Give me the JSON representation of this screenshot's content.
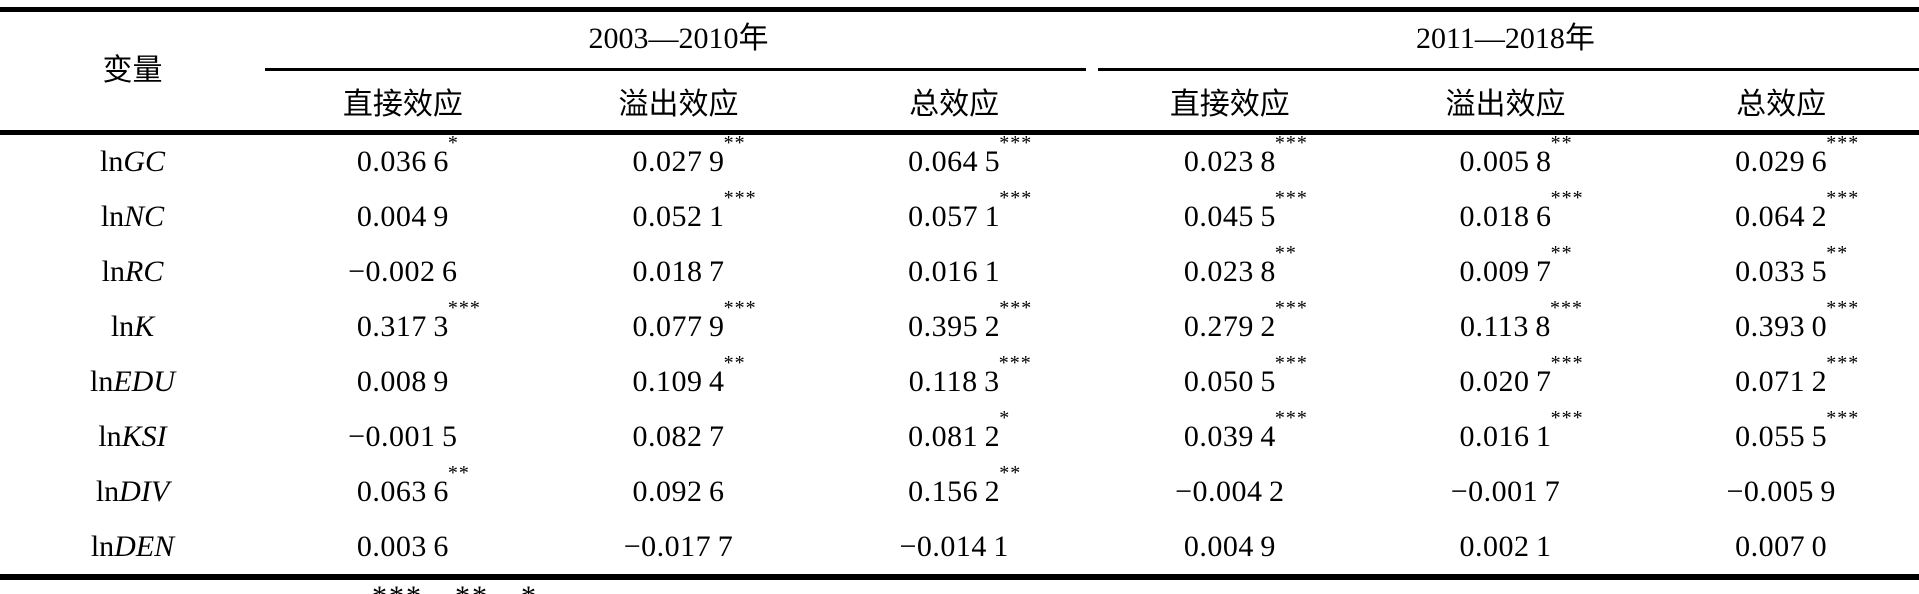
{
  "colors": {
    "text": "#000000",
    "background": "#ffffff",
    "rule": "#000000"
  },
  "table": {
    "variable_column_header": "变量",
    "column_groups": [
      {
        "label": "2003—2010年",
        "columns": [
          "直接效应",
          "溢出效应",
          "总效应"
        ]
      },
      {
        "label": "2011—2018年",
        "columns": [
          "直接效应",
          "溢出效应",
          "总效应"
        ]
      }
    ],
    "rows": [
      {
        "variable": "lnGC",
        "cells": [
          {
            "value": "0.0366",
            "stars": "*"
          },
          {
            "value": "0.0279",
            "stars": "**"
          },
          {
            "value": "0.0645",
            "stars": "***"
          },
          {
            "value": "0.0238",
            "stars": "***"
          },
          {
            "value": "0.0058",
            "stars": "**"
          },
          {
            "value": "0.0296",
            "stars": "***"
          }
        ]
      },
      {
        "variable": "lnNC",
        "cells": [
          {
            "value": "0.0049",
            "stars": ""
          },
          {
            "value": "0.0521",
            "stars": "***"
          },
          {
            "value": "0.0571",
            "stars": "***"
          },
          {
            "value": "0.0455",
            "stars": "***"
          },
          {
            "value": "0.0186",
            "stars": "***"
          },
          {
            "value": "0.0642",
            "stars": "***"
          }
        ]
      },
      {
        "variable": "lnRC",
        "cells": [
          {
            "value": "−0.0026",
            "stars": ""
          },
          {
            "value": "0.0187",
            "stars": ""
          },
          {
            "value": "0.0161",
            "stars": ""
          },
          {
            "value": "0.0238",
            "stars": "**"
          },
          {
            "value": "0.0097",
            "stars": "**"
          },
          {
            "value": "0.0335",
            "stars": "**"
          }
        ]
      },
      {
        "variable": "lnK",
        "cells": [
          {
            "value": "0.3173",
            "stars": "***"
          },
          {
            "value": "0.0779",
            "stars": "***"
          },
          {
            "value": "0.3952",
            "stars": "***"
          },
          {
            "value": "0.2792",
            "stars": "***"
          },
          {
            "value": "0.1138",
            "stars": "***"
          },
          {
            "value": "0.3930",
            "stars": "***"
          }
        ]
      },
      {
        "variable": "lnEDU",
        "cells": [
          {
            "value": "0.0089",
            "stars": ""
          },
          {
            "value": "0.1094",
            "stars": "**"
          },
          {
            "value": "0.1183",
            "stars": "***"
          },
          {
            "value": "0.0505",
            "stars": "***"
          },
          {
            "value": "0.0207",
            "stars": "***"
          },
          {
            "value": "0.0712",
            "stars": "***"
          }
        ]
      },
      {
        "variable": "lnKSI",
        "cells": [
          {
            "value": "−0.0015",
            "stars": ""
          },
          {
            "value": "0.0827",
            "stars": ""
          },
          {
            "value": "0.0812",
            "stars": "*"
          },
          {
            "value": "0.0394",
            "stars": "***"
          },
          {
            "value": "0.0161",
            "stars": "***"
          },
          {
            "value": "0.0555",
            "stars": "***"
          }
        ]
      },
      {
        "variable": "lnDIV",
        "cells": [
          {
            "value": "0.0636",
            "stars": "**"
          },
          {
            "value": "0.0926",
            "stars": ""
          },
          {
            "value": "0.1562",
            "stars": "**"
          },
          {
            "value": "−0.0042",
            "stars": ""
          },
          {
            "value": "−0.0017",
            "stars": ""
          },
          {
            "value": "−0.0059",
            "stars": ""
          }
        ]
      },
      {
        "variable": "lnDEN",
        "cells": [
          {
            "value": "0.0036",
            "stars": ""
          },
          {
            "value": "−0.0177",
            "stars": ""
          },
          {
            "value": "−0.0141",
            "stars": ""
          },
          {
            "value": "0.0049",
            "stars": ""
          },
          {
            "value": "0.0021",
            "stars": ""
          },
          {
            "value": "0.0070",
            "stars": ""
          }
        ]
      }
    ],
    "footnote_fragment": "***、**、*"
  }
}
